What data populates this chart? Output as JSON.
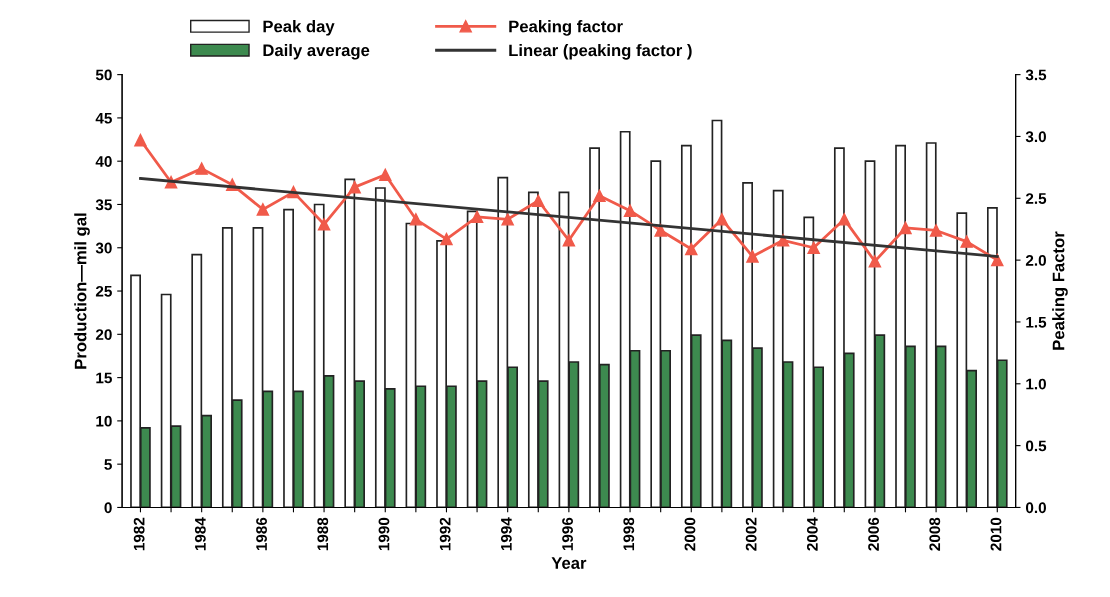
{
  "chart_data": {
    "type": "bar",
    "xlabel": "Year",
    "ylabel": "Production—mil gal",
    "y2label": "Peaking Factor",
    "categories": [
      "1982",
      null,
      "1984",
      null,
      "1986",
      null,
      "1988",
      null,
      "1990",
      null,
      "1992",
      null,
      "1994",
      null,
      "1996",
      null,
      "1998",
      null,
      "2000",
      null,
      "2002",
      null,
      "2004",
      null,
      "2006",
      null,
      "2008",
      null,
      "2010"
    ],
    "series": [
      {
        "name": "Peak day",
        "color": "#ffffff",
        "values": [
          26.8,
          24.6,
          29.2,
          32.3,
          32.3,
          34.4,
          35.0,
          37.9,
          36.9,
          32.8,
          30.8,
          34.2,
          38.1,
          36.4,
          36.4,
          41.5,
          43.4,
          40.0,
          41.8,
          44.7,
          37.5,
          36.6,
          33.5,
          41.5,
          40.0,
          41.8,
          42.1,
          34.0,
          34.6
        ]
      },
      {
        "name": "Daily average",
        "color": "#3d8a4f",
        "values": [
          9.2,
          9.4,
          10.6,
          12.4,
          13.4,
          13.4,
          15.2,
          14.6,
          13.7,
          14.0,
          14.0,
          14.6,
          16.2,
          14.6,
          16.8,
          16.5,
          18.1,
          18.1,
          19.9,
          19.3,
          18.4,
          16.8,
          16.2,
          17.8,
          19.9,
          18.6,
          18.6,
          15.8,
          17.0
        ]
      },
      {
        "name": "Peaking factor",
        "type": "line",
        "axis": "y2",
        "color": "#f05a4a",
        "marker": "triangle",
        "values": [
          2.97,
          2.63,
          2.74,
          2.61,
          2.41,
          2.55,
          2.29,
          2.59,
          2.69,
          2.33,
          2.17,
          2.35,
          2.33,
          2.48,
          2.16,
          2.52,
          2.4,
          2.24,
          2.09,
          2.33,
          2.03,
          2.16,
          2.1,
          2.33,
          1.99,
          2.26,
          2.24,
          2.15,
          2.0
        ]
      },
      {
        "name": "Linear (peaking factor )",
        "type": "line",
        "axis": "y2",
        "color": "#333333",
        "marker": "none",
        "values": [
          2.66,
          null,
          null,
          null,
          null,
          null,
          null,
          null,
          null,
          null,
          null,
          null,
          null,
          null,
          null,
          null,
          null,
          null,
          null,
          null,
          null,
          null,
          null,
          null,
          null,
          null,
          null,
          null,
          2.03
        ]
      }
    ],
    "ylim": [
      0,
      50
    ],
    "yticks": [
      0,
      5,
      10,
      15,
      20,
      25,
      30,
      35,
      40,
      45,
      50
    ],
    "y2lim": [
      0,
      3.5
    ],
    "y2ticks": [
      {
        "value": 0,
        "label": "0.0"
      },
      {
        "value": 0.5,
        "label": "0.5"
      },
      {
        "value": 1,
        "label": "1.0"
      },
      {
        "value": 1.5,
        "label": "1.5"
      },
      {
        "value": 2,
        "label": "2.0"
      },
      {
        "value": 2.5,
        "label": "2.5"
      },
      {
        "value": 3,
        "label": "3.0"
      },
      {
        "value": 3.5,
        "label": "3.5"
      }
    ],
    "grid": false,
    "legend": "top",
    "line_style": "solid"
  }
}
